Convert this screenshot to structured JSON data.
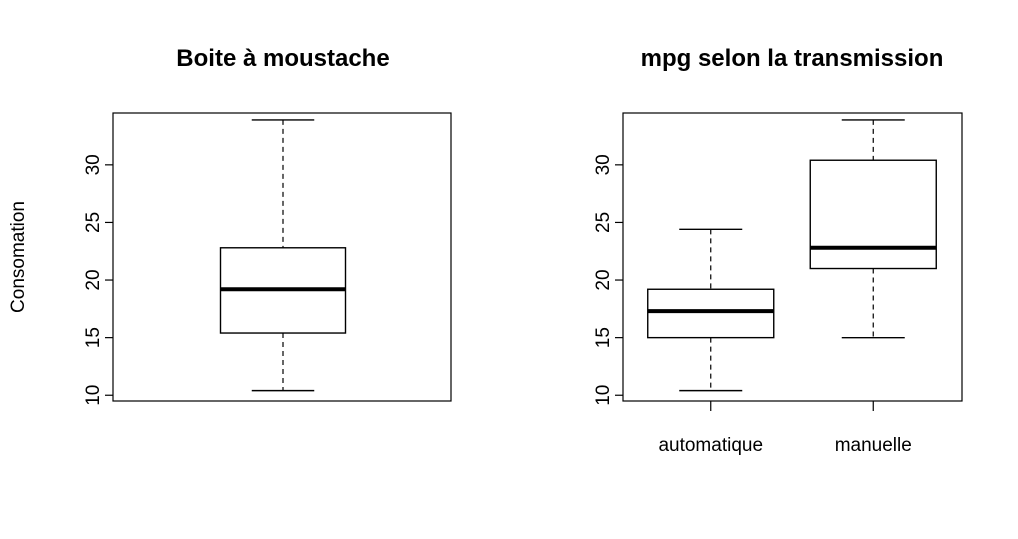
{
  "chart_data": [
    {
      "type": "boxplot",
      "title": "Boite à moustache",
      "xlabel": "",
      "ylabel": "Consomation",
      "ylim": [
        9.5,
        34.5
      ],
      "yticks": [
        10,
        15,
        20,
        25,
        30
      ],
      "yticklabels": [
        "10",
        "15",
        "20",
        "25",
        "30"
      ],
      "categories": [
        ""
      ],
      "boxes": [
        {
          "min": 10.4,
          "q1": 15.4,
          "median": 19.2,
          "q3": 22.8,
          "max": 33.9
        }
      ]
    },
    {
      "type": "boxplot",
      "title": "mpg selon la transmission",
      "xlabel": "",
      "ylabel": "",
      "ylim": [
        9.5,
        34.5
      ],
      "yticks": [
        10,
        15,
        20,
        25,
        30
      ],
      "yticklabels": [
        "10",
        "15",
        "20",
        "25",
        "30"
      ],
      "categories": [
        "automatique",
        "manuelle"
      ],
      "boxes": [
        {
          "min": 10.4,
          "q1": 15.0,
          "median": 17.3,
          "q3": 19.2,
          "max": 24.4
        },
        {
          "min": 15.0,
          "q1": 21.0,
          "median": 22.8,
          "q3": 30.4,
          "max": 33.9
        }
      ]
    }
  ]
}
